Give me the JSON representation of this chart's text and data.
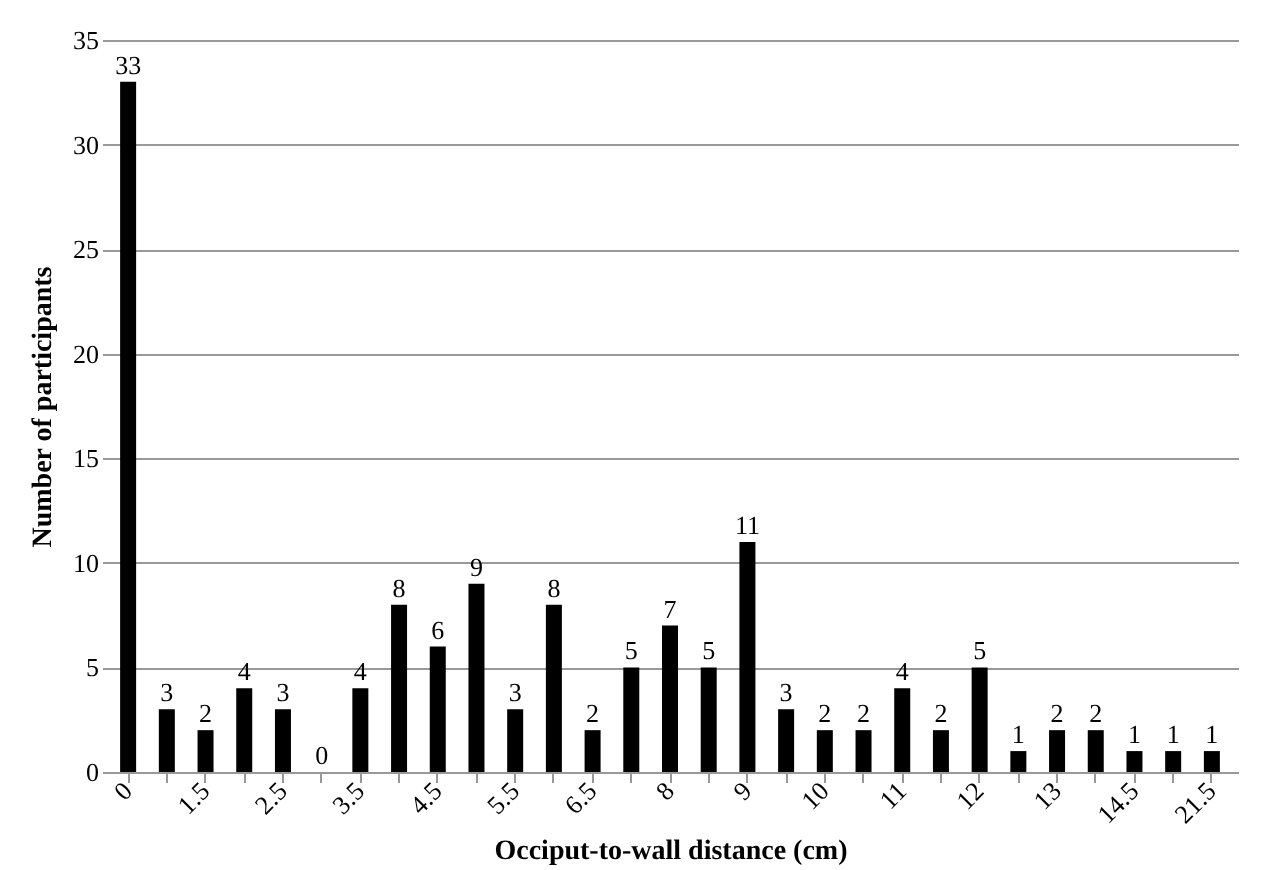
{
  "chart_data": {
    "type": "bar",
    "xlabel": "Occiput-to-wall distance (cm)",
    "ylabel": "Number of participants",
    "categories": [
      "0",
      null,
      "1.5",
      null,
      "2.5",
      null,
      "3.5",
      null,
      "4.5",
      null,
      "5.5",
      null,
      "6.5",
      null,
      "8",
      null,
      "9",
      null,
      "10",
      null,
      "11",
      null,
      "12",
      null,
      "13",
      null,
      "14.5",
      null,
      "21.5"
    ],
    "values": [
      33,
      3,
      2,
      4,
      3,
      0,
      4,
      8,
      6,
      9,
      3,
      8,
      2,
      5,
      7,
      5,
      11,
      3,
      2,
      2,
      4,
      2,
      5,
      1,
      2,
      2,
      1,
      1,
      1
    ],
    "color": "#000000",
    "ylim": [
      0,
      35
    ],
    "yticks": [
      0,
      5,
      10,
      15,
      20,
      25,
      30,
      35
    ],
    "grid": "y",
    "data_labels": true
  }
}
